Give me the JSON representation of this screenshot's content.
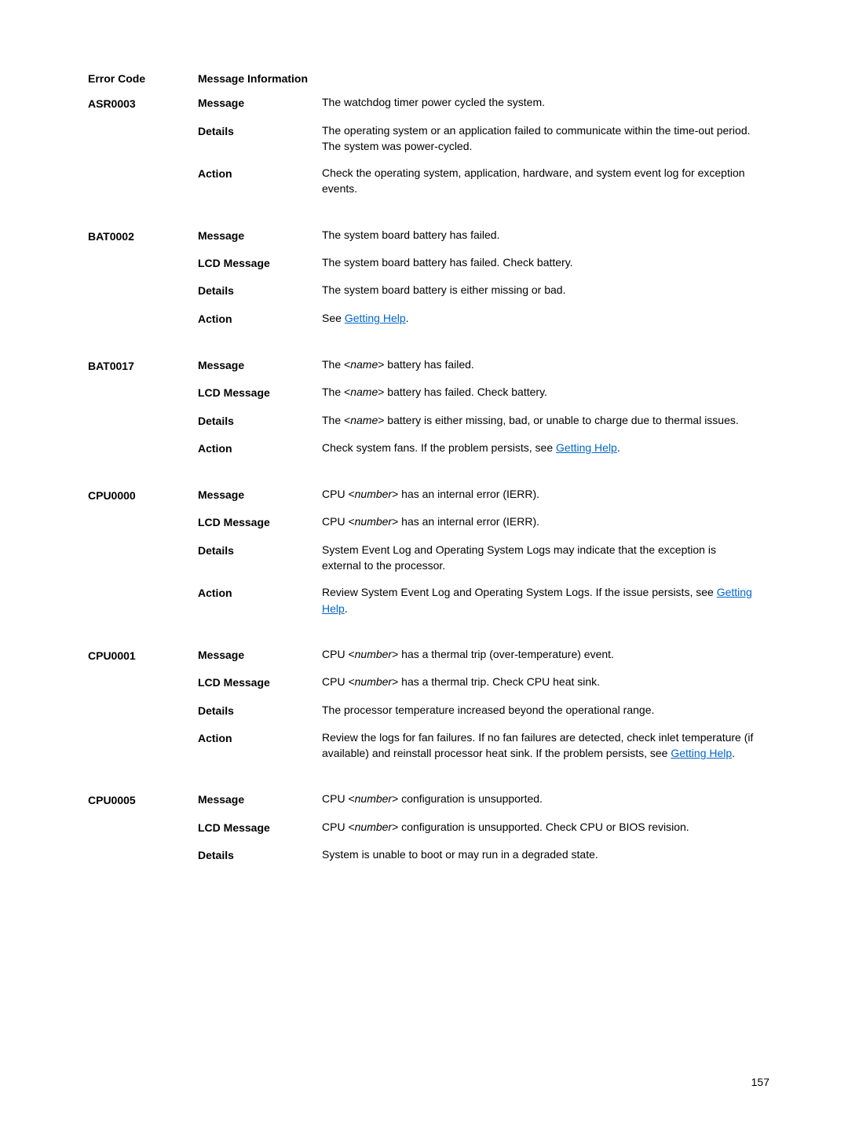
{
  "headers": {
    "errorCode": "Error Code",
    "messageInfo": "Message Information"
  },
  "labels": {
    "message": "Message",
    "details": "Details",
    "action": "Action",
    "lcdMessage": "LCD Message"
  },
  "codes": {
    "asr0003": "ASR0003",
    "bat0002": "BAT0002",
    "bat0017": "BAT0017",
    "cpu0000": "CPU0000",
    "cpu0001": "CPU0001",
    "cpu0005": "CPU0005"
  },
  "text": {
    "asr0003": {
      "message": "The watchdog timer power cycled the system.",
      "details": "The operating system or an application failed to communicate within the time-out period. The system was power-cycled.",
      "action": "Check the operating system, application, hardware, and system event log for exception events."
    },
    "bat0002": {
      "message": "The system board battery has failed.",
      "lcd": "The system board battery has failed. Check battery.",
      "details": "The system board battery is either missing or bad.",
      "action_pre": "See ",
      "action_link": "Getting Help"
    },
    "bat0017": {
      "message_pre": "The <",
      "message_param": "name",
      "message_post": "> battery has failed.",
      "lcd_pre": "The <",
      "lcd_param": "name",
      "lcd_post": "> battery has failed. Check battery.",
      "details_pre": "The <",
      "details_param": "name",
      "details_post": "> battery is either missing, bad, or unable to charge due to thermal issues.",
      "action_pre": "Check system fans. If the problem persists, see ",
      "action_link": "Getting Help"
    },
    "cpu0000": {
      "message_pre": "CPU <",
      "message_param": "number",
      "message_post": "> has an internal error (IERR).",
      "lcd_pre": "CPU <",
      "lcd_param": "number",
      "lcd_post": "> has an internal error (IERR).",
      "details": "System Event Log and Operating System Logs may indicate that the exception is external to the processor.",
      "action_pre": "Review System Event Log and Operating System Logs. If the issue persists, see ",
      "action_link": "Getting Help"
    },
    "cpu0001": {
      "message_pre": "CPU <",
      "message_param": "number",
      "message_post": "> has a thermal trip (over-temperature) event.",
      "lcd_pre": "CPU <",
      "lcd_param": "number",
      "lcd_post": "> has a thermal trip. Check CPU heat sink.",
      "details": "The processor temperature increased beyond the operational range.",
      "action_pre": "Review the logs for fan failures. If no fan failures are detected, check inlet temperature (if available) and reinstall processor heat sink. If the problem persists, see ",
      "action_link": "Getting Help"
    },
    "cpu0005": {
      "message_pre": "CPU <",
      "message_param": "number",
      "message_post": "> configuration is unsupported.",
      "lcd_pre": "CPU <",
      "lcd_param": "number",
      "lcd_post": "> configuration is unsupported. Check CPU or BIOS revision.",
      "details": "System is unable to boot or may run in a degraded state."
    }
  },
  "period": ".",
  "pageNumber": "157"
}
